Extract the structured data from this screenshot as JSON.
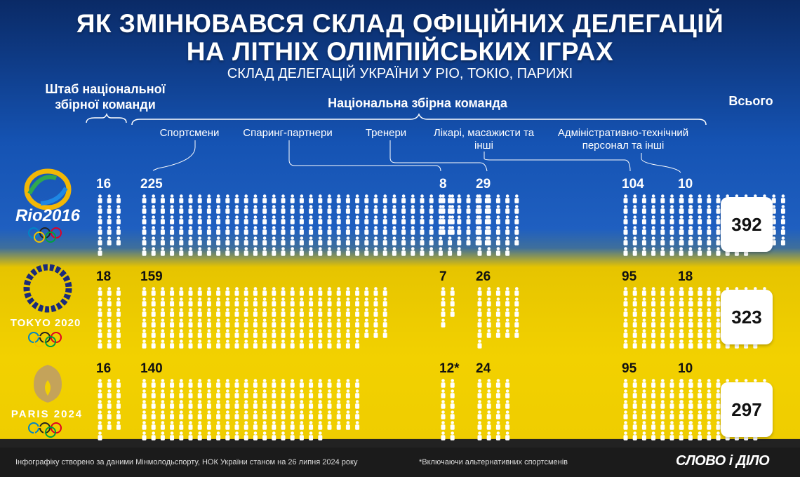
{
  "title_line1": "ЯК ЗМІНЮВАВСЯ СКЛАД ОФІЦІЙНИХ ДЕЛЕГАЦІЙ",
  "title_line2": "НА ЛІТНІХ ОЛІМПІЙСЬКИХ ІГРАХ",
  "subtitle": "СКЛАД ДЕЛЕГАЦІЙ УКРАЇНИ У РІО, ТОКІО, ПАРИЖІ",
  "headquarters_header": "Штаб національної збірної команди",
  "national_team_header": "Національна збірна команда",
  "total_header": "Всього",
  "footnote": "*Включаючи альтернативних спортсменів",
  "source": "Інфографіку створено за даними Мінмолодьспорту, НОК України станом на 26 липня 2024 року",
  "brand": "СЛОВО і ДІЛО",
  "colors": {
    "blue_top": "#0a2a66",
    "blue_mid": "#1553b3",
    "yellow": "#f2d100",
    "icon": "#ffffff",
    "footer": "#1b1b1b"
  },
  "icons": {
    "person": "person-icon",
    "rings": "olympic-rings-icon"
  },
  "logos": {
    "rio": "Rio2016",
    "tokyo": "TOKYO 2020",
    "paris": "PARIS 2024"
  },
  "chart_data": {
    "type": "table",
    "title": "ЯК ЗМІНЮВАВСЯ СКЛАД ОФІЦІЙНИХ ДЕЛЕГАЦІЙ НА ЛІТНІХ ОЛІМПІЙСЬКИХ ІГРАХ",
    "categories": [
      "Штаб національної збірної команди",
      "Спортсмени",
      "Спаринг-партнери",
      "Тренери",
      "Лікарі, масажисти та інші",
      "Адміністративно-технічний персонал та інші",
      "Всього"
    ],
    "rows": [
      {
        "games": "Rio2016",
        "values": [
          "16",
          "225",
          "8",
          "104",
          "29",
          "10",
          "392"
        ]
      },
      {
        "games": "TOKYO 2020",
        "values": [
          "18",
          "159",
          "7",
          "95",
          "26",
          "18",
          "323"
        ]
      },
      {
        "games": "PARIS 2024",
        "values": [
          "16",
          "140",
          "12*",
          "95",
          "24",
          "10",
          "297"
        ]
      }
    ]
  }
}
